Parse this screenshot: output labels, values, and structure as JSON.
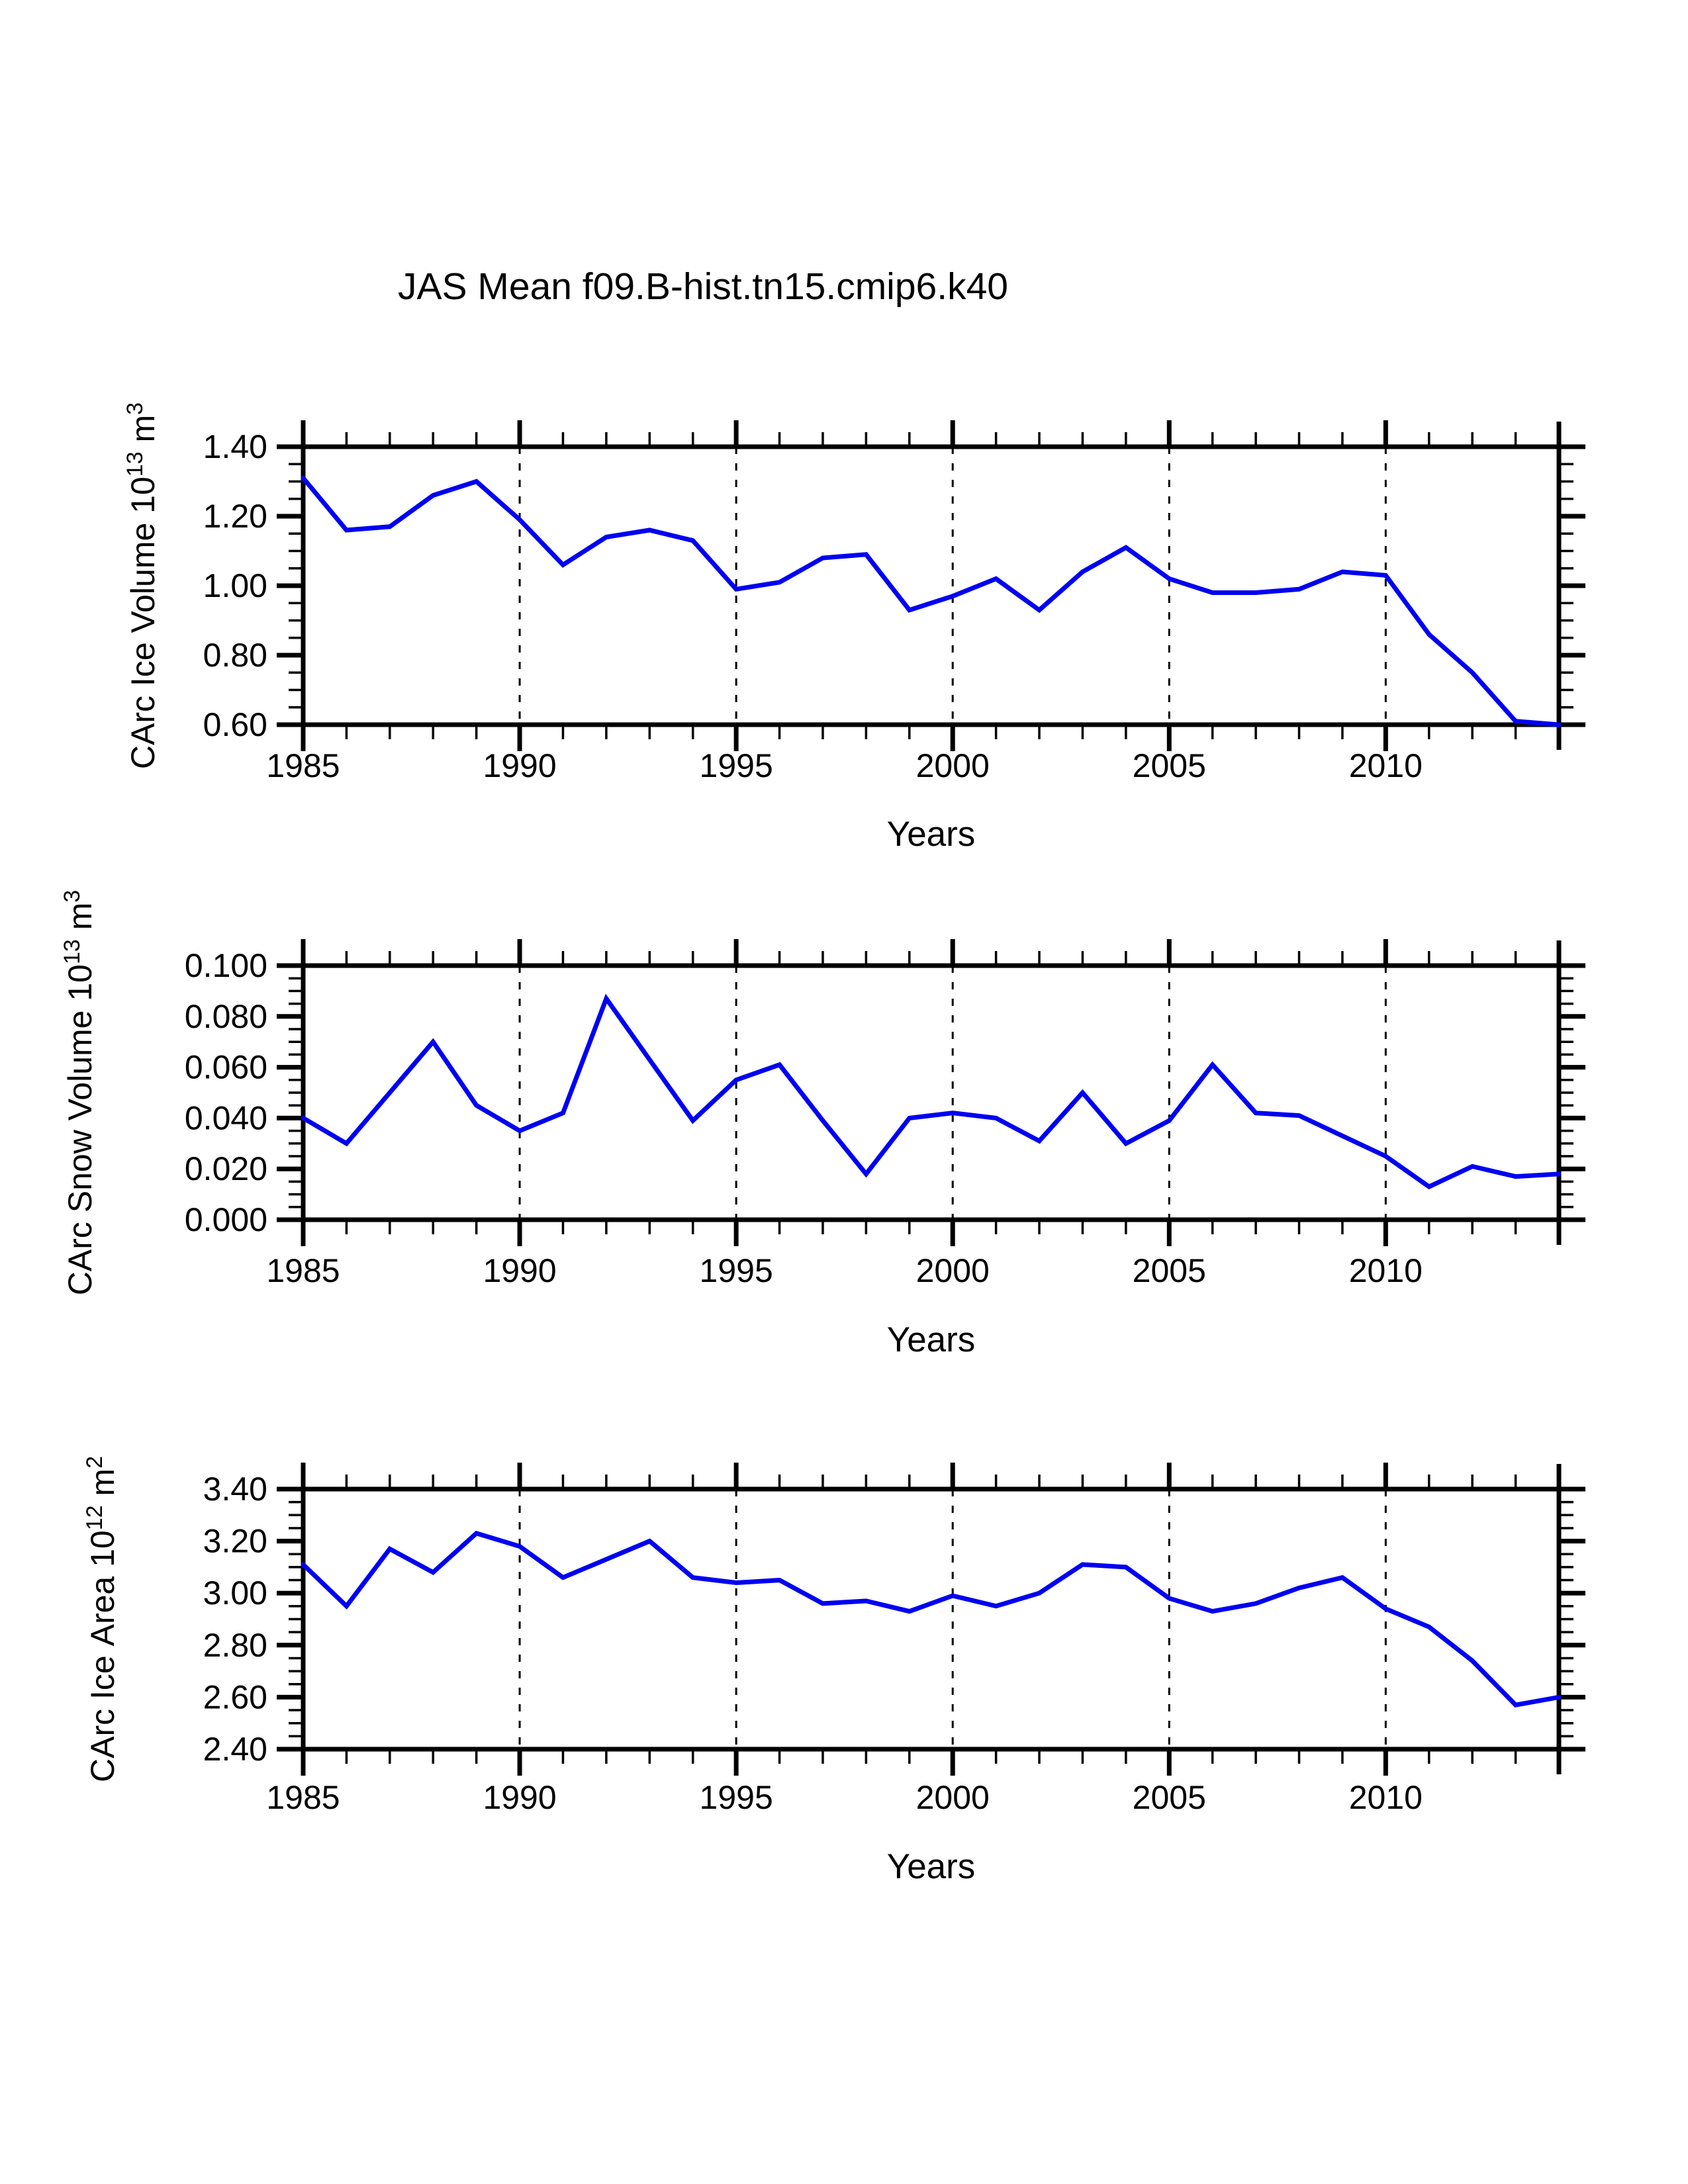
{
  "title": "JAS Mean f09.B-hist.tn15.cmip6.k40",
  "line_color": "#0000f2",
  "axis_color": "#000000",
  "background_color": "#ffffff",
  "chart_data": [
    {
      "type": "line",
      "name": "ice-volume",
      "title": "",
      "xlabel": "Years",
      "ylabel_segments": [
        {
          "t": "CArc Ice Volume 10"
        },
        {
          "t": "13",
          "sup": true
        },
        {
          "t": " m"
        },
        {
          "t": "3",
          "sup": true
        }
      ],
      "ylim": [
        0.6,
        1.4
      ],
      "xlim": [
        1985,
        2014
      ],
      "ytick_values": [
        0.6,
        0.8,
        1.0,
        1.2,
        1.4
      ],
      "ytick_labels": [
        "0.60",
        "0.80",
        "1.00",
        "1.20",
        "1.40"
      ],
      "yminor_step": 0.05,
      "xtick_major": [
        1985,
        1990,
        1995,
        2000,
        2005,
        2010
      ],
      "xtick_labels": [
        "1985",
        "1990",
        "1995",
        "2000",
        "2005",
        "2010"
      ],
      "xminor_step": 1,
      "grid_years": [
        1990,
        1995,
        2000,
        2005,
        2010
      ],
      "grid_on": true,
      "legend": "none",
      "x": [
        1985,
        1986,
        1987,
        1988,
        1989,
        1990,
        1991,
        1992,
        1993,
        1994,
        1995,
        1996,
        1997,
        1998,
        1999,
        2000,
        2001,
        2002,
        2003,
        2004,
        2005,
        2006,
        2007,
        2008,
        2009,
        2010,
        2011,
        2012,
        2013,
        2014
      ],
      "values": [
        1.31,
        1.16,
        1.17,
        1.26,
        1.3,
        1.19,
        1.06,
        1.14,
        1.16,
        1.13,
        0.99,
        1.01,
        1.08,
        1.09,
        0.93,
        0.97,
        1.02,
        0.93,
        1.04,
        1.11,
        1.02,
        0.98,
        0.98,
        0.99,
        1.04,
        1.03,
        0.86,
        0.75,
        0.61,
        0.6
      ]
    },
    {
      "type": "line",
      "name": "snow-volume",
      "title": "",
      "xlabel": "Years",
      "ylabel_segments": [
        {
          "t": "CArc Snow Volume 10"
        },
        {
          "t": "13",
          "sup": true
        },
        {
          "t": " m"
        },
        {
          "t": "3",
          "sup": true
        }
      ],
      "ylim": [
        0.0,
        0.1
      ],
      "xlim": [
        1985,
        2014
      ],
      "ytick_values": [
        0.0,
        0.02,
        0.04,
        0.06,
        0.08,
        0.1
      ],
      "ytick_labels": [
        "0.000",
        "0.020",
        "0.040",
        "0.060",
        "0.080",
        "0.100"
      ],
      "yminor_step": 0.005,
      "xtick_major": [
        1985,
        1990,
        1995,
        2000,
        2005,
        2010
      ],
      "xtick_labels": [
        "1985",
        "1990",
        "1995",
        "2000",
        "2005",
        "2010"
      ],
      "xminor_step": 1,
      "grid_years": [
        1990,
        1995,
        2000,
        2005,
        2010
      ],
      "grid_on": true,
      "legend": "none",
      "x": [
        1985,
        1986,
        1987,
        1988,
        1989,
        1990,
        1991,
        1992,
        1993,
        1994,
        1995,
        1996,
        1997,
        1998,
        1999,
        2000,
        2001,
        2002,
        2003,
        2004,
        2005,
        2006,
        2007,
        2008,
        2009,
        2010,
        2011,
        2012,
        2013,
        2014
      ],
      "values": [
        0.04,
        0.03,
        0.05,
        0.07,
        0.045,
        0.035,
        0.042,
        0.087,
        0.063,
        0.039,
        0.055,
        0.061,
        0.039,
        0.018,
        0.04,
        0.042,
        0.04,
        0.031,
        0.05,
        0.03,
        0.039,
        0.061,
        0.042,
        0.041,
        0.033,
        0.025,
        0.013,
        0.021,
        0.017,
        0.018
      ]
    },
    {
      "type": "line",
      "name": "ice-area",
      "title": "",
      "xlabel": "Years",
      "ylabel_segments": [
        {
          "t": "CArc Ice Area 10"
        },
        {
          "t": "12",
          "sup": true
        },
        {
          "t": " m"
        },
        {
          "t": "2",
          "sup": true
        }
      ],
      "ylim": [
        2.4,
        3.4
      ],
      "xlim": [
        1985,
        2014
      ],
      "ytick_values": [
        2.4,
        2.6,
        2.8,
        3.0,
        3.2,
        3.4
      ],
      "ytick_labels": [
        "2.40",
        "2.60",
        "2.80",
        "3.00",
        "3.20",
        "3.40"
      ],
      "yminor_step": 0.05,
      "xtick_major": [
        1985,
        1990,
        1995,
        2000,
        2005,
        2010
      ],
      "xtick_labels": [
        "1985",
        "1990",
        "1995",
        "2000",
        "2005",
        "2010"
      ],
      "xminor_step": 1,
      "grid_years": [
        1990,
        1995,
        2000,
        2005,
        2010
      ],
      "grid_on": true,
      "legend": "none",
      "x": [
        1985,
        1986,
        1987,
        1988,
        1989,
        1990,
        1991,
        1992,
        1993,
        1994,
        1995,
        1996,
        1997,
        1998,
        1999,
        2000,
        2001,
        2002,
        2003,
        2004,
        2005,
        2006,
        2007,
        2008,
        2009,
        2010,
        2011,
        2012,
        2013,
        2014
      ],
      "values": [
        3.11,
        2.95,
        3.17,
        3.08,
        3.23,
        3.18,
        3.06,
        3.13,
        3.2,
        3.06,
        3.04,
        3.05,
        2.96,
        2.97,
        2.93,
        2.99,
        2.95,
        3.0,
        3.11,
        3.1,
        2.98,
        2.93,
        2.96,
        3.02,
        3.06,
        2.94,
        2.87,
        2.74,
        2.57,
        2.6
      ]
    }
  ]
}
